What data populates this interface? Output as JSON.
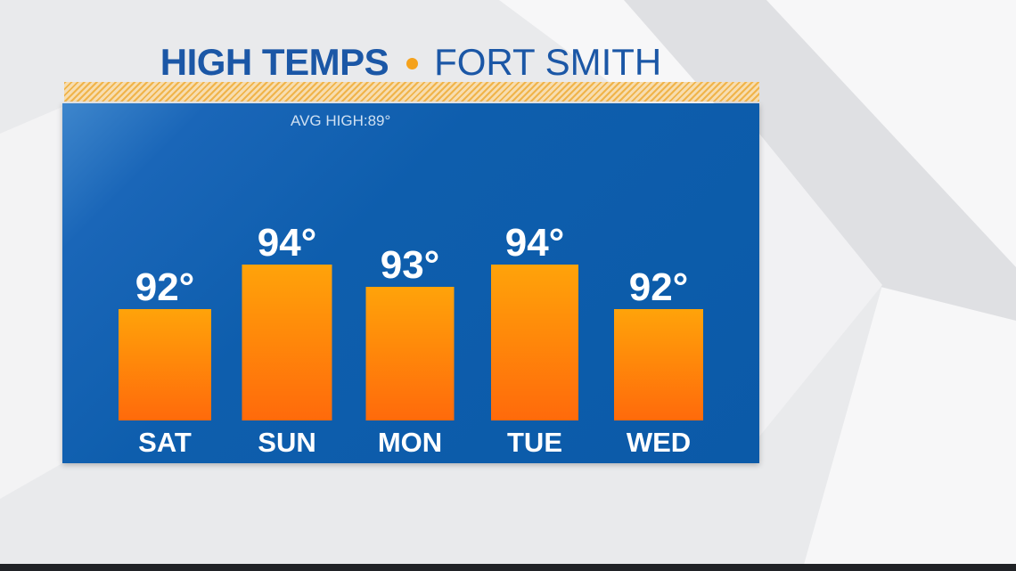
{
  "title": {
    "main": "HIGH TEMPS",
    "location": "FORT SMITH"
  },
  "avg_high_label": "AVG HIGH:89°",
  "colors": {
    "title_text": "#1b57a6",
    "title_dot": "#f5a21c",
    "panel": "#0b5aa8",
    "bar_top": "#ffa30a",
    "bar_bottom": "#ff6a0b",
    "label_text": "#ffffff"
  },
  "chart_data": {
    "type": "bar",
    "categories": [
      "SAT",
      "SUN",
      "MON",
      "TUE",
      "WED"
    ],
    "values": [
      92,
      94,
      93,
      94,
      92
    ],
    "value_labels": [
      "92°",
      "94°",
      "93°",
      "94°",
      "92°"
    ],
    "reference": {
      "label": "AVG HIGH:89°",
      "value": 89
    },
    "title": "HIGH TEMPS • FORT SMITH",
    "xlabel": "",
    "ylabel": "",
    "ylim": [
      87,
      95
    ],
    "grid": false,
    "legend": "none"
  }
}
